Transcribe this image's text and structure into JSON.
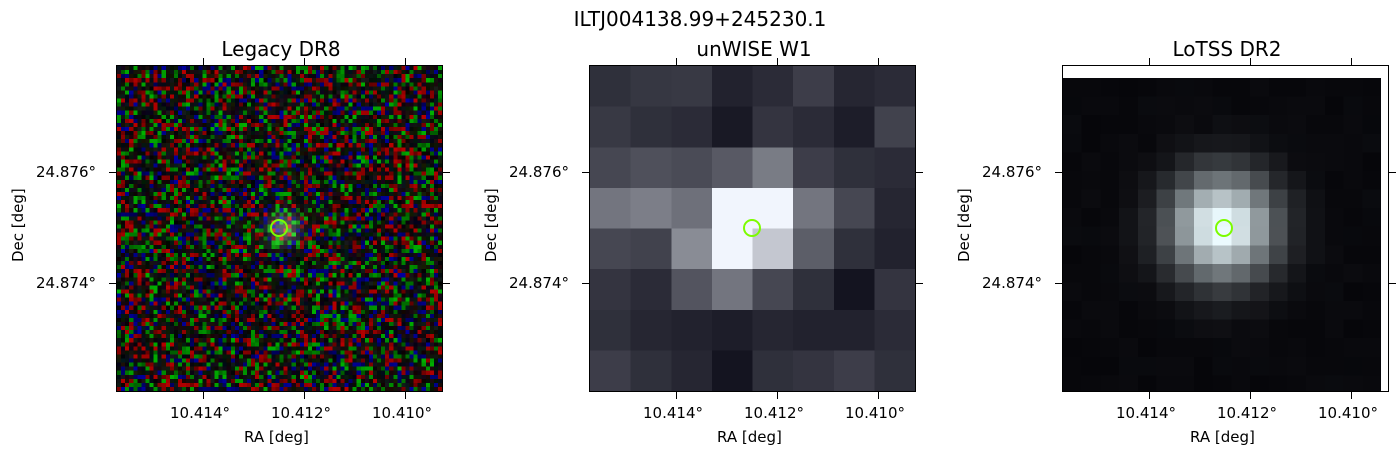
{
  "figure": {
    "title": "ILTJ004138.99+245230.1"
  },
  "panels": [
    {
      "title": "Legacy DR8",
      "xlabel": "RA [deg]",
      "ylabel": "Dec [deg]",
      "xticks": [
        "10.414°",
        "10.412°",
        "10.410°"
      ],
      "yticks": [
        "24.876°",
        "24.874°"
      ]
    },
    {
      "title": "unWISE W1",
      "xlabel": "RA [deg]",
      "ylabel": "Dec [deg]",
      "xticks": [
        "10.414°",
        "10.412°",
        "10.410°"
      ],
      "yticks": [
        "24.876°",
        "24.874°"
      ]
    },
    {
      "title": "LoTSS DR2",
      "xlabel": "RA [deg]",
      "ylabel": "Dec [deg]",
      "xticks": [
        "10.414°",
        "10.412°",
        "10.410°"
      ],
      "yticks": [
        "24.876°",
        "24.874°"
      ]
    }
  ],
  "colors": {
    "marker_circle": "#7CFC00",
    "background": "#ffffff"
  }
}
